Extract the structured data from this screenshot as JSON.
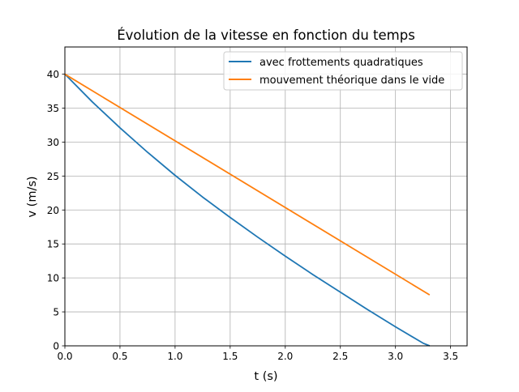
{
  "chart_data": {
    "type": "line",
    "title": "Évolution de la vitesse en fonction du temps",
    "xlabel": "t (s)",
    "ylabel": "v (m/s)",
    "xlim": [
      0,
      3.65
    ],
    "ylim": [
      0,
      44
    ],
    "xticks": [
      0.0,
      0.5,
      1.0,
      1.5,
      2.0,
      2.5,
      3.0,
      3.5
    ],
    "xtick_labels": [
      "0.0",
      "0.5",
      "1.0",
      "1.5",
      "2.0",
      "2.5",
      "3.0",
      "3.5"
    ],
    "yticks": [
      0,
      5,
      10,
      15,
      20,
      25,
      30,
      35,
      40
    ],
    "ytick_labels": [
      "0",
      "5",
      "10",
      "15",
      "20",
      "25",
      "30",
      "35",
      "40"
    ],
    "grid": true,
    "legend_position": "top-right",
    "series": [
      {
        "name": "avec frottements quadratiques",
        "color": "#1f77b4",
        "x": [
          0.0,
          0.25,
          0.5,
          0.75,
          1.0,
          1.25,
          1.5,
          1.75,
          2.0,
          2.25,
          2.5,
          2.75,
          3.0,
          3.25,
          3.31
        ],
        "y": [
          40.0,
          35.9,
          32.1,
          28.5,
          25.1,
          21.9,
          18.9,
          16.0,
          13.2,
          10.5,
          7.9,
          5.3,
          2.8,
          0.4,
          0.0
        ]
      },
      {
        "name": "mouvement théorique dans le vide",
        "color": "#ff7f0e",
        "x": [
          0.0,
          3.31
        ],
        "y": [
          40.0,
          7.5
        ]
      }
    ]
  }
}
